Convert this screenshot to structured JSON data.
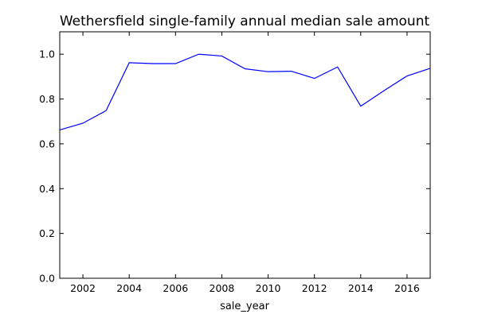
{
  "chart_data": {
    "type": "line",
    "title": "Wethersfield single-family annual median sale amount",
    "xlabel": "sale_year",
    "ylabel": "",
    "x": [
      2001,
      2002,
      2003,
      2004,
      2005,
      2006,
      2007,
      2008,
      2009,
      2010,
      2011,
      2012,
      2013,
      2014,
      2015,
      2016,
      2017
    ],
    "series": [
      {
        "values": [
          0.662,
          0.692,
          0.748,
          0.962,
          0.958,
          0.958,
          1.0,
          0.992,
          0.935,
          0.922,
          0.924,
          0.892,
          0.943,
          0.768,
          0.837,
          0.903,
          0.937
        ],
        "color": "#0000ff"
      }
    ],
    "xlim": [
      2001,
      2017
    ],
    "ylim": [
      0.0,
      1.1
    ],
    "xticks": [
      2002,
      2004,
      2006,
      2008,
      2010,
      2012,
      2014,
      2016
    ],
    "yticks": [
      0.0,
      0.2,
      0.4,
      0.6,
      0.8,
      1.0
    ],
    "xtick_labels": [
      "2002",
      "2004",
      "2006",
      "2008",
      "2010",
      "2012",
      "2014",
      "2016"
    ],
    "ytick_labels": [
      "0.0",
      "0.2",
      "0.4",
      "0.6",
      "0.8",
      "1.0"
    ],
    "grid": false,
    "legend": "none"
  }
}
